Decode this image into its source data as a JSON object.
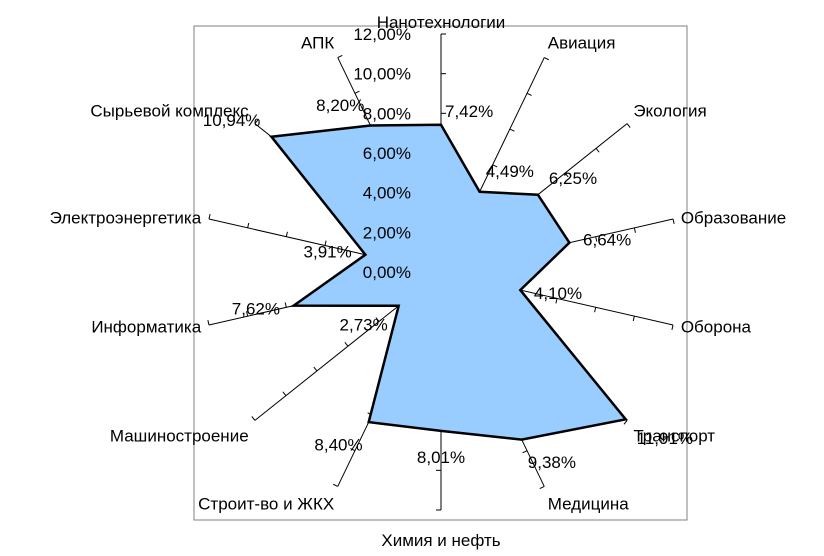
{
  "chart_data": {
    "type": "radar",
    "title": "",
    "categories": [
      "Нанотехнологии",
      "Авиация",
      "Экология",
      "Образование",
      "Оборона",
      "Транспорт",
      "Медицина",
      "Химия и нефть",
      "Строит-во и ЖКХ",
      "Машиностроение",
      "Информатика",
      "Электроэнергетика",
      "Сырьевой комплекс",
      "АПК"
    ],
    "values": [
      7.42,
      4.49,
      6.25,
      6.64,
      4.1,
      11.91,
      9.38,
      8.01,
      8.4,
      2.73,
      7.62,
      3.91,
      10.94,
      8.2
    ],
    "value_labels": [
      "7,42%",
      "4,49%",
      "6,25%",
      "6,64%",
      "4,10%",
      "11,91%",
      "9,38%",
      "8,01%",
      "8,40%",
      "2,73%",
      "7,62%",
      "3,91%",
      "10,94%",
      "8,20%"
    ],
    "axis": {
      "min": 0,
      "max": 12,
      "step": 2,
      "tick_labels": [
        "0,00%",
        "2,00%",
        "4,00%",
        "6,00%",
        "8,00%",
        "10,00%",
        "12,00%"
      ]
    },
    "fill_color": "#99ccff",
    "line_color": "#000000",
    "plot_border_color": "#808080",
    "grid": false,
    "legend": "none"
  }
}
